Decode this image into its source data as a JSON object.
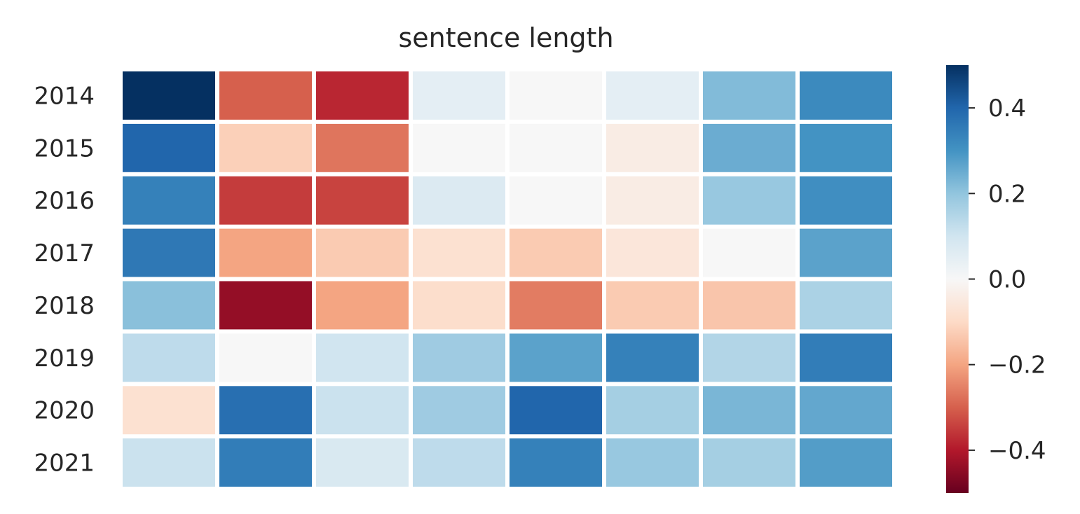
{
  "chart_data": {
    "type": "heatmap",
    "title": "sentence length",
    "rows": [
      "2014",
      "2015",
      "2016",
      "2017",
      "2018",
      "2019",
      "2020",
      "2021"
    ],
    "columns": [
      "",
      "",
      "",
      "",
      "",
      "",
      "",
      ""
    ],
    "values": [
      [
        0.5,
        -0.3,
        -0.38,
        0.05,
        0.0,
        0.05,
        0.22,
        0.32
      ],
      [
        0.4,
        -0.12,
        -0.27,
        0.0,
        0.0,
        -0.04,
        0.25,
        0.3
      ],
      [
        0.34,
        -0.35,
        -0.34,
        0.07,
        0.0,
        -0.04,
        0.19,
        0.31
      ],
      [
        0.36,
        -0.2,
        -0.13,
        -0.08,
        -0.13,
        -0.06,
        0.0,
        0.27
      ],
      [
        0.21,
        -0.44,
        -0.2,
        -0.09,
        -0.26,
        -0.13,
        -0.14,
        0.16
      ],
      [
        0.13,
        0.0,
        0.1,
        0.18,
        0.27,
        0.34,
        0.15,
        0.35
      ],
      [
        -0.08,
        0.38,
        0.11,
        0.18,
        0.4,
        0.17,
        0.23,
        0.26
      ],
      [
        0.11,
        0.35,
        0.08,
        0.13,
        0.34,
        0.19,
        0.17,
        0.28
      ]
    ],
    "colorbar": {
      "colormap": "RdBu",
      "vmin": -0.5,
      "vmax": 0.5,
      "ticks": [
        0.4,
        0.2,
        0.0,
        -0.2,
        -0.4
      ],
      "tick_labels": [
        "0.4",
        "0.2",
        "0.0",
        "−0.2",
        "−0.4"
      ]
    }
  }
}
